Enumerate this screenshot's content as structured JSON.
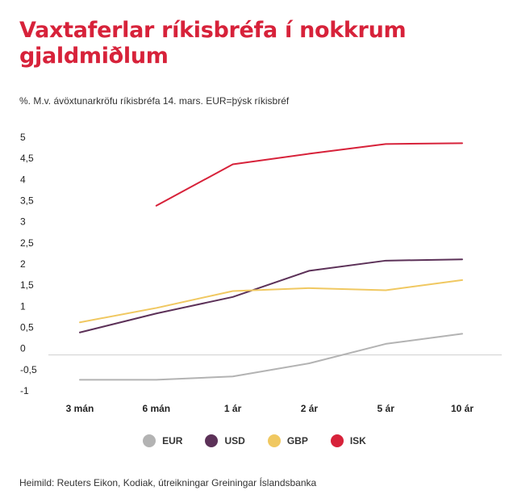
{
  "title": "Vaxtaferlar ríkisbréfa í nokkrum gjaldmiðlum",
  "subtitle": "%.  M.v. ávöxtunarkröfu ríkisbréfa 14. mars. EUR=þýsk ríkisbréf",
  "source": "Heimild: Reuters Eikon, Kodiak, útreikningar Greiningar Íslandsbanka",
  "chart_data": {
    "type": "line",
    "title": "Vaxtaferlar ríkisbréfa í nokkrum gjaldmiðlum",
    "categories": [
      "3 mán",
      "6 mán",
      "1 ár",
      "2 ár",
      "5 ár",
      "10 ár"
    ],
    "y_ticks": [
      5,
      4.5,
      4,
      3.5,
      3,
      2.5,
      2,
      1.5,
      1,
      0.5,
      0,
      -0.5,
      -1
    ],
    "y_tick_labels": [
      "5",
      "4,5",
      "4",
      "3,5",
      "3",
      "2,5",
      "2",
      "1,5",
      "1",
      "0,5",
      "0",
      "-0,5",
      "-1"
    ],
    "ylim": [
      -1,
      5
    ],
    "zero_line": true,
    "legend_position": "bottom",
    "series": [
      {
        "name": "EUR",
        "color": "#b3b3b3",
        "values": [
          -0.74,
          -0.74,
          -0.66,
          -0.35,
          0.11,
          0.35
        ]
      },
      {
        "name": "USD",
        "color": "#5c3158",
        "values": [
          0.38,
          0.83,
          1.22,
          1.84,
          2.08,
          2.11
        ]
      },
      {
        "name": "GBP",
        "color": "#f0c861",
        "values": [
          0.62,
          0.96,
          1.36,
          1.43,
          1.38,
          1.62
        ]
      },
      {
        "name": "ISK",
        "color": "#d7223a",
        "values": [
          null,
          3.38,
          4.36,
          4.61,
          4.84,
          4.86
        ]
      }
    ]
  }
}
